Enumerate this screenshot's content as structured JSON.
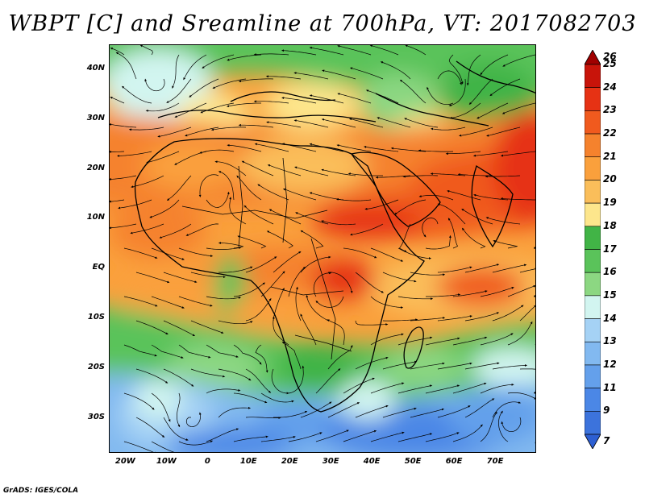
{
  "title": "WBPT [C] and Sreamline at 700hPa, VT: 2017082703",
  "credit": "GrADS: IGES/COLA",
  "map": {
    "lon_range": [
      -24,
      80
    ],
    "lat_range": [
      -37,
      45
    ],
    "lat_ticks": [
      {
        "lat": 40,
        "label": "40N"
      },
      {
        "lat": 30,
        "label": "30N"
      },
      {
        "lat": 20,
        "label": "20N"
      },
      {
        "lat": 10,
        "label": "10N"
      },
      {
        "lat": 0,
        "label": "EQ"
      },
      {
        "lat": -10,
        "label": "10S"
      },
      {
        "lat": -20,
        "label": "20S"
      },
      {
        "lat": -30,
        "label": "30S"
      }
    ],
    "lon_ticks": [
      {
        "lon": -20,
        "label": "20W"
      },
      {
        "lon": -10,
        "label": "10W"
      },
      {
        "lon": 0,
        "label": "0"
      },
      {
        "lon": 10,
        "label": "10E"
      },
      {
        "lon": 20,
        "label": "20E"
      },
      {
        "lon": 30,
        "label": "30E"
      },
      {
        "lon": 40,
        "label": "40E"
      },
      {
        "lon": 50,
        "label": "50E"
      },
      {
        "lon": 60,
        "label": "60E"
      },
      {
        "lon": 70,
        "label": "70E"
      }
    ]
  },
  "colorbar": {
    "levels": [
      {
        "label": "26",
        "color": "#a00000"
      },
      {
        "label": "25",
        "color": "#c8140a"
      },
      {
        "label": "24",
        "color": "#e63214"
      },
      {
        "label": "23",
        "color": "#f05a1e"
      },
      {
        "label": "22",
        "color": "#f5822d"
      },
      {
        "label": "21",
        "color": "#faa03c"
      },
      {
        "label": "20",
        "color": "#fabe5a"
      },
      {
        "label": "19",
        "color": "#fde68c"
      },
      {
        "label": "18",
        "color": "#41b446"
      },
      {
        "label": "17",
        "color": "#5ac35a"
      },
      {
        "label": "16",
        "color": "#8cd782"
      },
      {
        "label": "15",
        "color": "#d2f5f0"
      },
      {
        "label": "14",
        "color": "#a5d2f5"
      },
      {
        "label": "13",
        "color": "#82b9f0"
      },
      {
        "label": "12",
        "color": "#64a0eb"
      },
      {
        "label": "11",
        "color": "#4b87e6"
      },
      {
        "label": "9",
        "color": "#3c73dc"
      },
      {
        "label": "7",
        "color": "#2d5fd2"
      }
    ]
  }
}
